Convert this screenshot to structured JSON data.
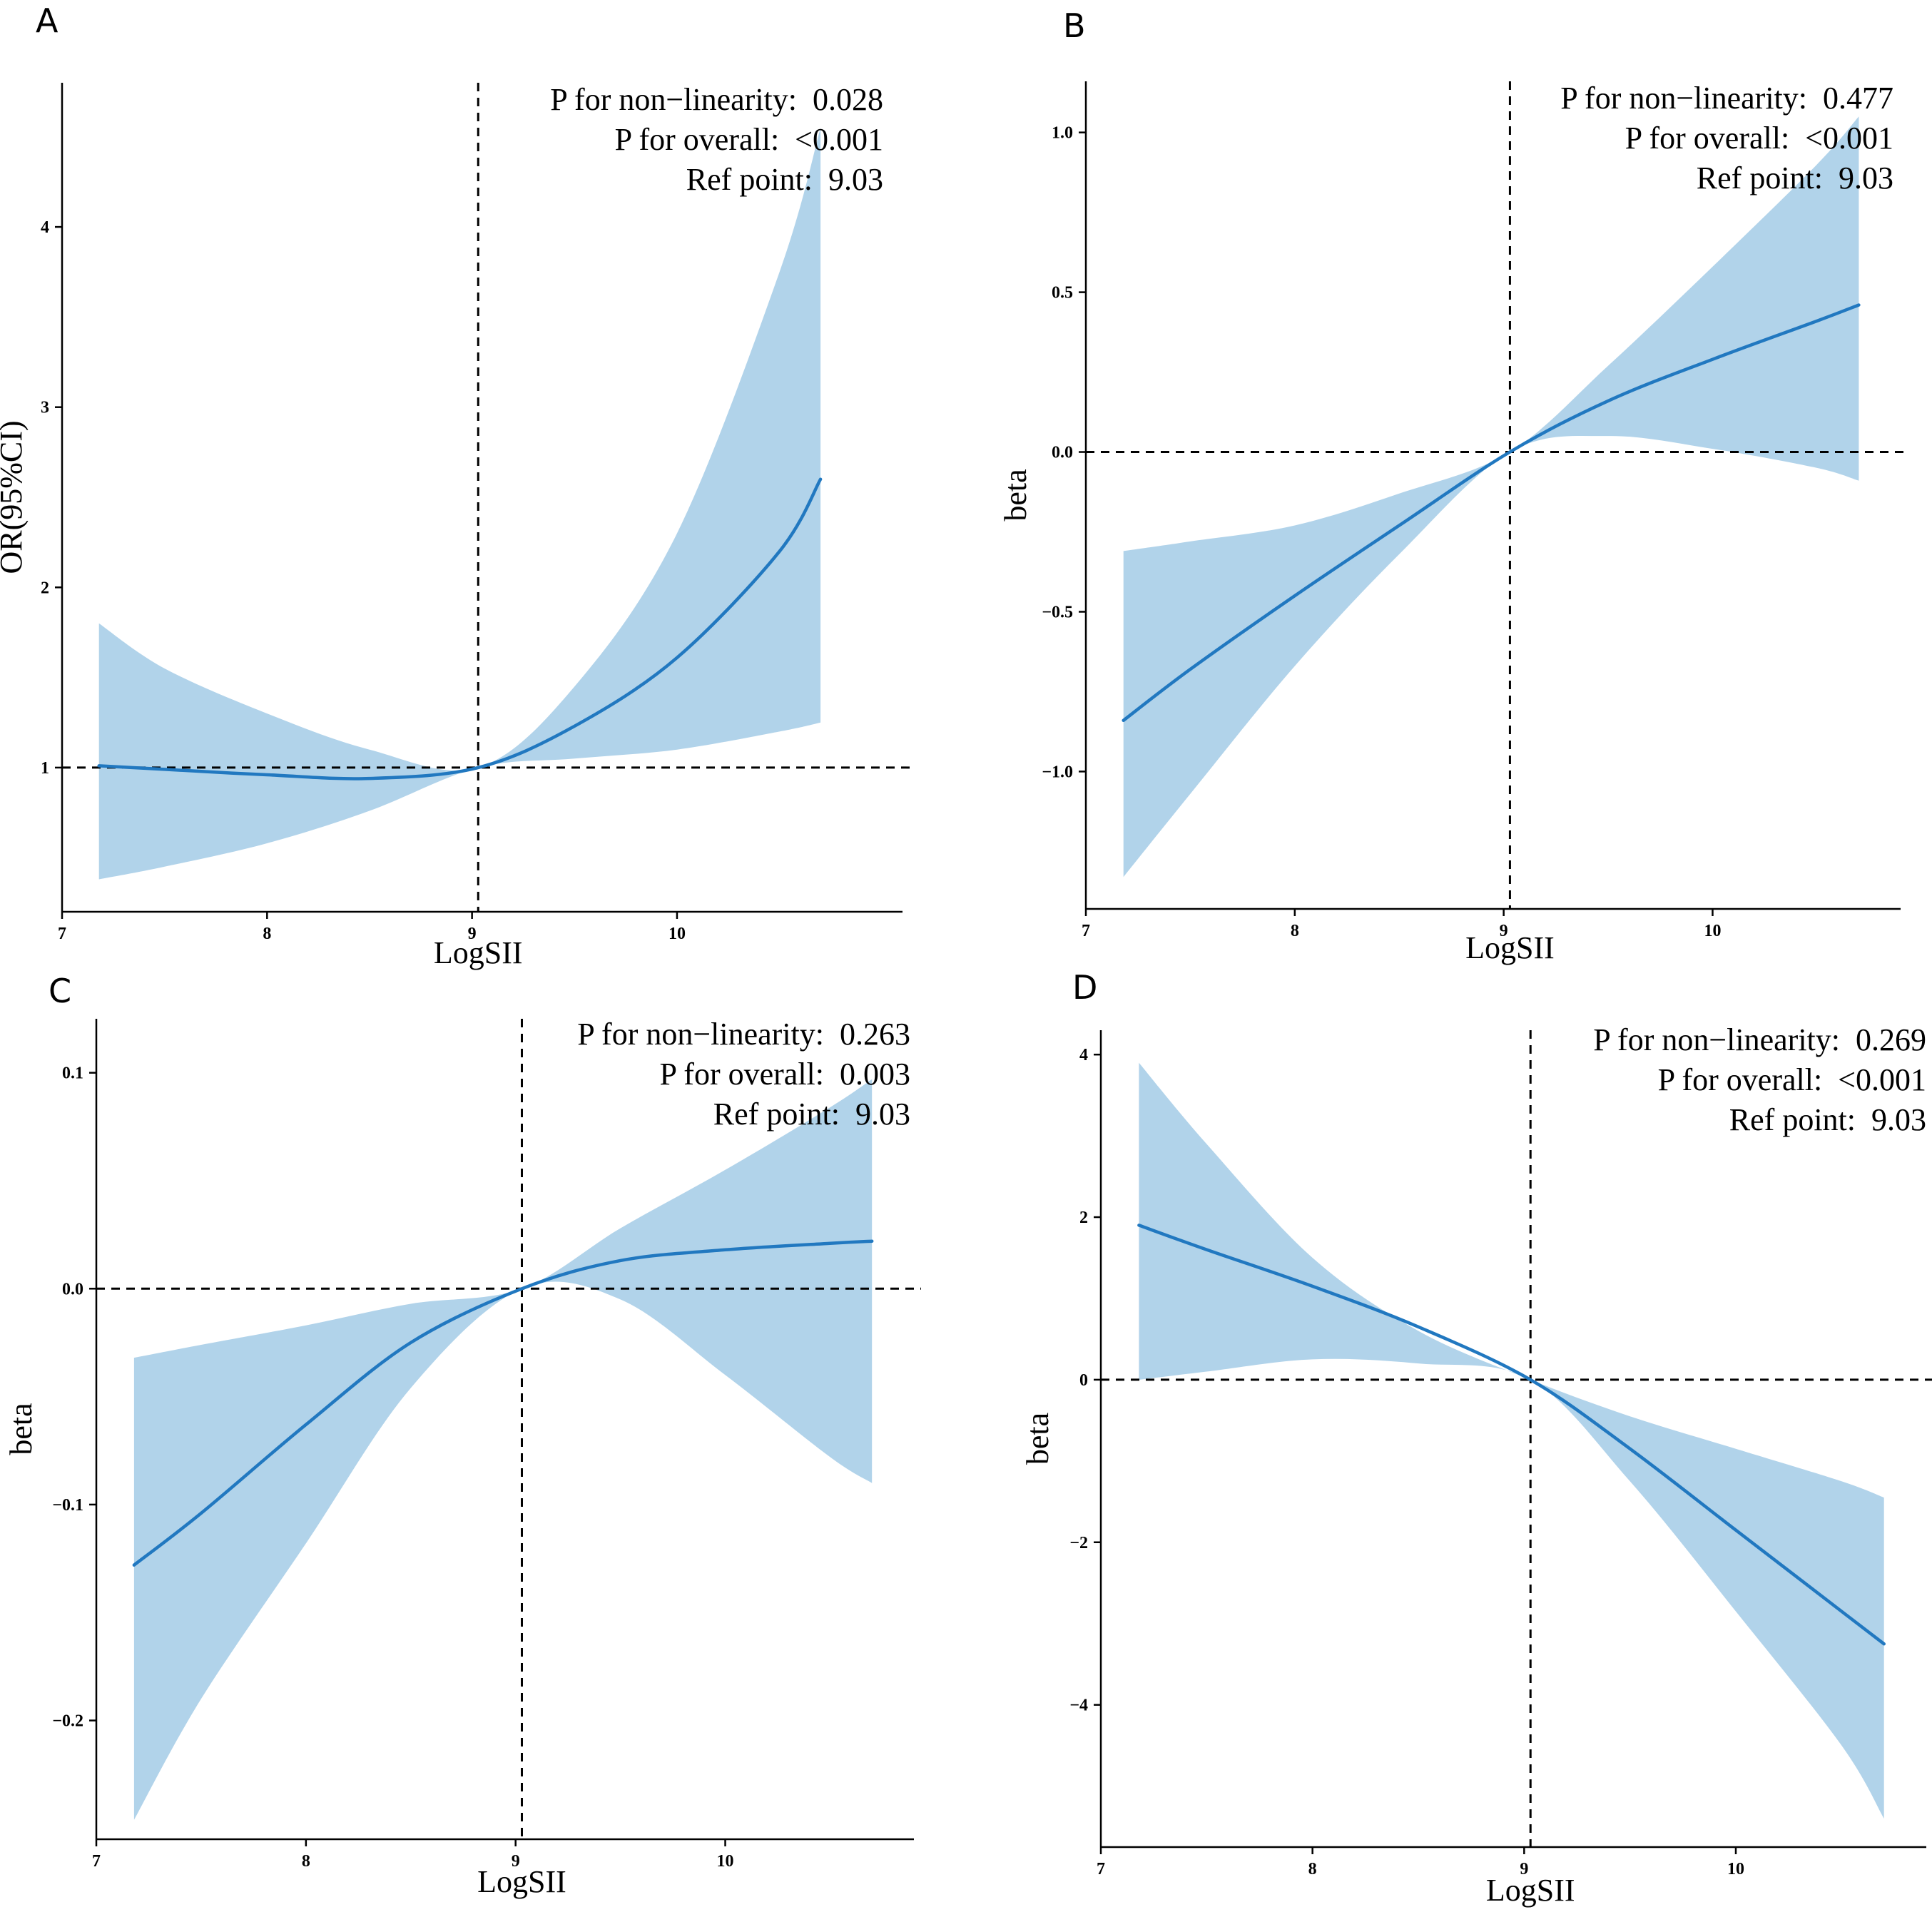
{
  "colors": {
    "band": "#b1d3ea",
    "line": "#2178c0",
    "axis": "#000000"
  },
  "chart_data": [
    {
      "panel": "A",
      "type": "line",
      "xlabel": "LogSII",
      "ylabel": "OR(95%CI)",
      "xlim": [
        7,
        11.1
      ],
      "ylim": [
        0.2,
        4.8
      ],
      "xticks": [
        7,
        8,
        9,
        10
      ],
      "yticks": [
        1,
        2,
        3,
        4
      ],
      "ytick_labels": [
        "1",
        "2",
        "3",
        "4"
      ],
      "ref_x": 9.03,
      "ref_y": 1,
      "annotation": {
        "line1": "P for non−linearity:  0.028",
        "line2": "P for overall:  <0.001",
        "line3": "Ref point:  9.03"
      },
      "series": [
        {
          "name": "OR",
          "x": [
            7.18,
            7.5,
            8.0,
            8.5,
            9.03,
            9.5,
            10.0,
            10.5,
            10.7
          ],
          "values": [
            1.01,
            0.99,
            0.96,
            0.94,
            1.0,
            1.23,
            1.61,
            2.2,
            2.6
          ]
        },
        {
          "name": "upper 95% CI",
          "x": [
            7.18,
            7.5,
            8.0,
            8.5,
            9.03,
            9.5,
            10.0,
            10.5,
            10.7
          ],
          "values": [
            1.8,
            1.55,
            1.3,
            1.1,
            1.0,
            1.45,
            2.3,
            3.75,
            4.55
          ]
        },
        {
          "name": "lower 95% CI",
          "x": [
            7.18,
            7.5,
            8.0,
            8.5,
            9.03,
            9.5,
            10.0,
            10.5,
            10.7
          ],
          "values": [
            0.38,
            0.45,
            0.58,
            0.76,
            1.0,
            1.05,
            1.1,
            1.2,
            1.25
          ]
        }
      ]
    },
    {
      "panel": "B",
      "type": "line",
      "xlabel": "LogSII",
      "ylabel": "beta",
      "xlim": [
        7,
        10.9
      ],
      "ylim": [
        -1.43,
        1.16
      ],
      "xticks": [
        7,
        8,
        9,
        10
      ],
      "yticks": [
        -1.0,
        -0.5,
        0.0,
        0.5,
        1.0
      ],
      "ytick_labels": [
        "−1.0",
        "−0.5",
        "0.0",
        "0.5",
        "1.0"
      ],
      "ref_x": 9.03,
      "ref_y": 0,
      "annotation": {
        "line1": "P for non−linearity:  0.477",
        "line2": "P for overall:  <0.001",
        "line3": "Ref point:  9.03"
      },
      "series": [
        {
          "name": "beta",
          "x": [
            7.18,
            7.5,
            8.0,
            8.5,
            9.03,
            9.5,
            10.0,
            10.5,
            10.7
          ],
          "values": [
            -0.84,
            -0.68,
            -0.45,
            -0.23,
            0.0,
            0.16,
            0.29,
            0.41,
            0.46
          ]
        },
        {
          "name": "upper 95% CI",
          "x": [
            7.18,
            7.5,
            8.0,
            8.5,
            9.03,
            9.5,
            10.0,
            10.5,
            10.7
          ],
          "values": [
            -0.31,
            -0.28,
            -0.23,
            -0.13,
            0.0,
            0.27,
            0.58,
            0.9,
            1.05
          ]
        },
        {
          "name": "lower 95% CI",
          "x": [
            7.18,
            7.5,
            8.0,
            8.5,
            9.03,
            9.5,
            10.0,
            10.5,
            10.7
          ],
          "values": [
            -1.33,
            -1.07,
            -0.67,
            -0.32,
            0.0,
            0.05,
            0.01,
            -0.05,
            -0.09
          ]
        }
      ]
    },
    {
      "panel": "C",
      "type": "line",
      "xlabel": "LogSII",
      "ylabel": "beta",
      "xlim": [
        7,
        10.9
      ],
      "ylim": [
        -0.255,
        0.125
      ],
      "xticks": [
        7,
        8,
        9,
        10
      ],
      "yticks": [
        -0.2,
        -0.1,
        0.0,
        0.1
      ],
      "ytick_labels": [
        "−0.2",
        "−0.1",
        "0.0",
        "0.1"
      ],
      "ref_x": 9.03,
      "ref_y": 0,
      "annotation": {
        "line1": "P for non−linearity:  0.263",
        "line2": "P for overall:  0.003",
        "line3": "Ref point:  9.03"
      },
      "series": [
        {
          "name": "beta",
          "x": [
            7.18,
            7.5,
            8.0,
            8.5,
            9.03,
            9.5,
            10.0,
            10.5,
            10.7
          ],
          "values": [
            -0.128,
            -0.104,
            -0.063,
            -0.025,
            0.0,
            0.013,
            0.018,
            0.021,
            0.022
          ]
        },
        {
          "name": "upper 95% CI",
          "x": [
            7.18,
            7.5,
            8.0,
            8.5,
            9.03,
            9.5,
            10.0,
            10.5,
            10.7
          ],
          "values": [
            -0.032,
            -0.026,
            -0.017,
            -0.007,
            0.0,
            0.028,
            0.055,
            0.084,
            0.097
          ]
        },
        {
          "name": "lower 95% CI",
          "x": [
            7.18,
            7.5,
            8.0,
            8.5,
            9.03,
            9.5,
            10.0,
            10.5,
            10.7
          ],
          "values": [
            -0.246,
            -0.19,
            -0.118,
            -0.046,
            0.0,
            -0.005,
            -0.04,
            -0.078,
            -0.09
          ]
        }
      ]
    },
    {
      "panel": "D",
      "type": "line",
      "xlabel": "LogSII",
      "ylabel": "beta",
      "xlim": [
        7,
        10.9
      ],
      "ylim": [
        -5.75,
        4.3
      ],
      "xticks": [
        7,
        8,
        9,
        10
      ],
      "yticks": [
        -4,
        -2,
        0,
        2,
        4
      ],
      "ytick_labels": [
        "−4",
        "−2",
        "0",
        "2",
        "4"
      ],
      "ref_x": 9.03,
      "ref_y": 0,
      "annotation": {
        "line1": "P for non−linearity:  0.269",
        "line2": "P for overall:  <0.001",
        "line3": "Ref point:  9.03"
      },
      "series": [
        {
          "name": "beta",
          "x": [
            7.18,
            7.5,
            8.0,
            8.5,
            9.03,
            9.5,
            10.0,
            10.5,
            10.7
          ],
          "values": [
            1.9,
            1.6,
            1.15,
            0.65,
            0.0,
            -0.85,
            -1.85,
            -2.85,
            -3.25
          ]
        },
        {
          "name": "upper 95% CI",
          "x": [
            7.18,
            7.5,
            8.0,
            8.5,
            9.03,
            9.5,
            10.0,
            10.5,
            10.7
          ],
          "values": [
            3.9,
            2.9,
            1.5,
            0.6,
            0.0,
            -0.45,
            -0.85,
            -1.25,
            -1.45
          ]
        },
        {
          "name": "lower 95% CI",
          "x": [
            7.18,
            7.5,
            8.0,
            8.5,
            9.03,
            9.5,
            10.0,
            10.5,
            10.7
          ],
          "values": [
            0.0,
            0.1,
            0.25,
            0.2,
            0.0,
            -1.25,
            -2.85,
            -4.5,
            -5.4
          ]
        }
      ]
    }
  ]
}
